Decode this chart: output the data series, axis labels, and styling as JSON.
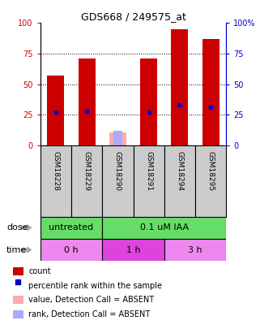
{
  "title": "GDS668 / 249575_at",
  "samples": [
    "GSM18228",
    "GSM18229",
    "GSM18290",
    "GSM18291",
    "GSM18294",
    "GSM18295"
  ],
  "bar_heights_red": [
    57,
    71,
    0,
    71,
    95,
    87
  ],
  "bar_heights_pink": [
    0,
    0,
    11,
    0,
    0,
    0
  ],
  "percentile_blue": [
    27,
    28,
    0,
    27,
    33,
    31
  ],
  "percentile_rank_absent": [
    0,
    0,
    12,
    0,
    0,
    0
  ],
  "absent_flags": [
    false,
    false,
    true,
    false,
    false,
    false
  ],
  "dose_labels": [
    "untreated",
    "0.1 uM IAA"
  ],
  "time_labels": [
    "0 h",
    "1 h",
    "3 h"
  ],
  "color_red": "#cc0000",
  "color_blue": "#0000cc",
  "color_pink": "#ffaaaa",
  "color_lightblue": "#aaaaff",
  "color_green": "#66dd66",
  "color_magenta": "#ee88ee",
  "color_magenta2": "#dd44dd",
  "color_gray": "#cccccc",
  "legend_items": [
    [
      "#cc0000",
      "count"
    ],
    [
      "#0000cc",
      "percentile rank within the sample"
    ],
    [
      "#ffaaaa",
      "value, Detection Call = ABSENT"
    ],
    [
      "#aaaaff",
      "rank, Detection Call = ABSENT"
    ]
  ]
}
